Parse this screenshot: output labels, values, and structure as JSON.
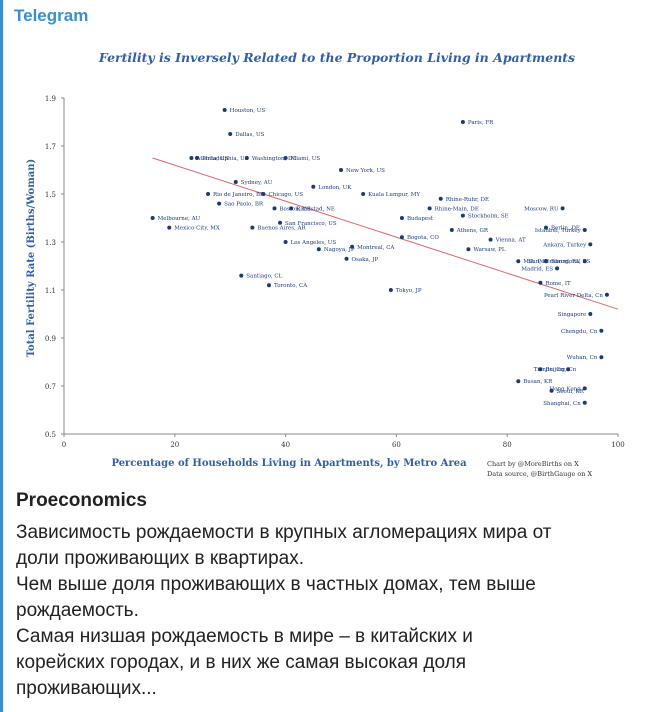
{
  "channel": {
    "name": "Telegram",
    "accent_color": "#3a8fd1"
  },
  "chart_data": {
    "type": "scatter",
    "title": "Fertility is Inversely Related to the Proportion Living in Apartments",
    "xlabel": "Percentage of Households Living in Apartments, by Metro Area",
    "ylabel": "Total Fertility Rate (Births/Woman)",
    "xlim": [
      0,
      100
    ],
    "ylim": [
      0.5,
      1.9
    ],
    "x_ticks": [
      "0",
      "20",
      "40",
      "60",
      "80",
      "100"
    ],
    "y_ticks": [
      "0.5",
      "0.7",
      "0.9",
      "1.1",
      "1.3",
      "1.5",
      "1.7",
      "1.9"
    ],
    "grid": false,
    "point_color": "#1a3a7a",
    "trend_color": "#e06666",
    "trendline": {
      "x": [
        16,
        100
      ],
      "y": [
        1.65,
        1.02
      ]
    },
    "credit": [
      "Chart by @MoreBirths on X",
      "Data source, @BirthGauge on X"
    ],
    "points": [
      {
        "label": "Houston, US",
        "x": 29,
        "y": 1.85
      },
      {
        "label": "Paris, FR",
        "x": 72,
        "y": 1.8
      },
      {
        "label": "Atlanta, US",
        "x": 23,
        "y": 1.65
      },
      {
        "label": "Dallas, US",
        "x": 30,
        "y": 1.75
      },
      {
        "label": "Philadelphia, US",
        "x": 24,
        "y": 1.65
      },
      {
        "label": "Washington, DC",
        "x": 33,
        "y": 1.65
      },
      {
        "label": "Miami, US",
        "x": 40,
        "y": 1.65
      },
      {
        "label": "New York, US",
        "x": 50,
        "y": 1.6
      },
      {
        "label": "Sydney, AU",
        "x": 31,
        "y": 1.55
      },
      {
        "label": "London, UK",
        "x": 45,
        "y": 1.53
      },
      {
        "label": "Kuala Lumpur, MY",
        "x": 54,
        "y": 1.5
      },
      {
        "label": "Rio de Janeiro, BR",
        "x": 26,
        "y": 1.5
      },
      {
        "label": "Chicago, US",
        "x": 36,
        "y": 1.5
      },
      {
        "label": "Rhine-Ruhr, DE",
        "x": 68,
        "y": 1.48
      },
      {
        "label": "Sao Paolo, BR",
        "x": 28,
        "y": 1.46
      },
      {
        "label": "Boston, US",
        "x": 38,
        "y": 1.44
      },
      {
        "label": "Randstad, NE",
        "x": 41,
        "y": 1.44
      },
      {
        "label": "Rhine-Main, DE",
        "x": 66,
        "y": 1.44
      },
      {
        "label": "Moscow, RU",
        "x": 90,
        "y": 1.44
      },
      {
        "label": "Melbourne, AU",
        "x": 16,
        "y": 1.4
      },
      {
        "label": "San Francisco, US",
        "x": 39,
        "y": 1.38
      },
      {
        "label": "Budapest",
        "x": 61,
        "y": 1.4
      },
      {
        "label": "Stockholm, SE",
        "x": 72,
        "y": 1.41
      },
      {
        "label": "Buenos Aires, AR",
        "x": 34,
        "y": 1.36
      },
      {
        "label": "Mexico City, MX",
        "x": 19,
        "y": 1.36
      },
      {
        "label": "Athens, GR",
        "x": 70,
        "y": 1.35
      },
      {
        "label": "Berlin, DE",
        "x": 87,
        "y": 1.36
      },
      {
        "label": "Istanbul, Turkey",
        "x": 94,
        "y": 1.35
      },
      {
        "label": "Bogota, CO",
        "x": 61,
        "y": 1.32
      },
      {
        "label": "Vienna, AT",
        "x": 77,
        "y": 1.31
      },
      {
        "label": "Los Angeles, US",
        "x": 40,
        "y": 1.3
      },
      {
        "label": "Nagoya, JP",
        "x": 46,
        "y": 1.27
      },
      {
        "label": "Montreal, CA",
        "x": 52,
        "y": 1.28
      },
      {
        "label": "Ankara, Turkey",
        "x": 95,
        "y": 1.29
      },
      {
        "label": "Warsaw, PL",
        "x": 73,
        "y": 1.27
      },
      {
        "label": "Osaka, JP",
        "x": 51,
        "y": 1.23
      },
      {
        "label": "Milan, IT",
        "x": 82,
        "y": 1.22
      },
      {
        "label": "Barcelona, ES",
        "x": 87,
        "y": 1.22
      },
      {
        "label": "St. Petersburg, RU",
        "x": 94,
        "y": 1.22
      },
      {
        "label": "Madrid, ES",
        "x": 89,
        "y": 1.19
      },
      {
        "label": "Santiago, CL",
        "x": 32,
        "y": 1.16
      },
      {
        "label": "Toronto, CA",
        "x": 37,
        "y": 1.12
      },
      {
        "label": "Tokyo, JP",
        "x": 59,
        "y": 1.1
      },
      {
        "label": "Rome, IT",
        "x": 86,
        "y": 1.13
      },
      {
        "label": "Pearl River Delta, Cn",
        "x": 98,
        "y": 1.08
      },
      {
        "label": "Singapore",
        "x": 95,
        "y": 1.0
      },
      {
        "label": "Chengdu, Cn",
        "x": 97,
        "y": 0.93
      },
      {
        "label": "Wuhan, Cn",
        "x": 97,
        "y": 0.82
      },
      {
        "label": "Beijing, Cn",
        "x": 86,
        "y": 0.77
      },
      {
        "label": "Tianjin, Cn",
        "x": 91,
        "y": 0.77
      },
      {
        "label": "Busan, KR",
        "x": 82,
        "y": 0.72
      },
      {
        "label": "Seoul, KR",
        "x": 88,
        "y": 0.68
      },
      {
        "label": "Hong Kong",
        "x": 94,
        "y": 0.69
      },
      {
        "label": "Shanghai, Cn",
        "x": 94,
        "y": 0.63
      }
    ]
  },
  "post": {
    "author": "Proeconomics",
    "lines": [
      "Зависимость рождаемости в крупных агломерациях мира от",
      "доли проживающих в квартирах.",
      "Чем выше доля проживающих в частных домах, тем выше",
      "рождаемость.",
      "Самая низшая рождаемость в мире – в китайских и",
      "корейских городах, и в них же самая высокая доля",
      "проживающих..."
    ]
  }
}
